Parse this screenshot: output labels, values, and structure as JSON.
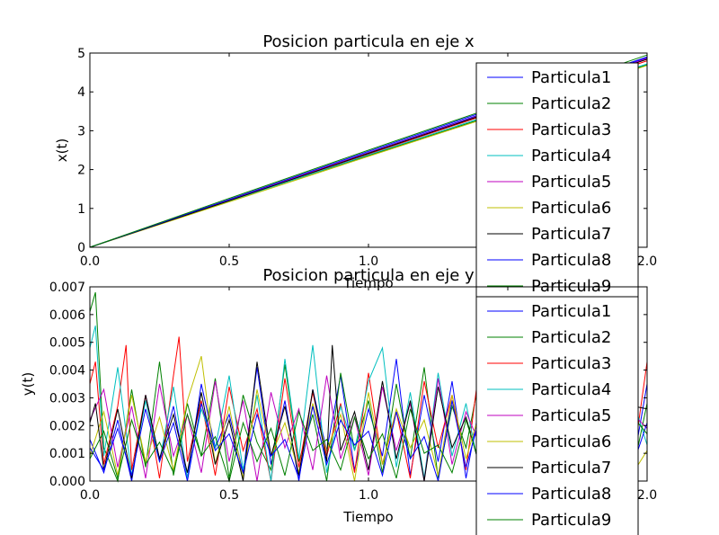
{
  "chart_data": [
    {
      "type": "line",
      "title": "Posicion particula en eje x",
      "xlabel": "Tiempo",
      "ylabel": "x(t)",
      "xlim": [
        0.0,
        2.0
      ],
      "ylim": [
        0,
        5
      ],
      "xticks": [
        "0.0",
        "0.5",
        "1.0",
        "1.5",
        "2.0"
      ],
      "yticks": [
        "0",
        "1",
        "2",
        "3",
        "4",
        "5"
      ],
      "legend_position": "top-right",
      "series": [
        {
          "name": "Particula1",
          "color": "#0000ff",
          "x": [
            0.0,
            0.5,
            1.0,
            1.5,
            2.0
          ],
          "y": [
            0.0,
            1.21,
            2.44,
            3.66,
            4.88
          ]
        },
        {
          "name": "Particula2",
          "color": "#008000",
          "x": [
            0.0,
            0.5,
            1.0,
            1.5,
            2.0
          ],
          "y": [
            0.0,
            1.2,
            2.36,
            3.52,
            4.7
          ]
        },
        {
          "name": "Particula3",
          "color": "#ff0000",
          "x": [
            0.0,
            0.5,
            1.0,
            1.5,
            2.0
          ],
          "y": [
            0.0,
            1.2,
            2.4,
            3.6,
            4.8
          ]
        },
        {
          "name": "Particula4",
          "color": "#00bfbf",
          "x": [
            0.0,
            0.5,
            1.0,
            1.5,
            2.0
          ],
          "y": [
            0.0,
            1.19,
            2.38,
            3.55,
            4.72
          ]
        },
        {
          "name": "Particula5",
          "color": "#bf00bf",
          "x": [
            0.0,
            0.5,
            1.0,
            1.5,
            2.0
          ],
          "y": [
            0.0,
            1.22,
            2.43,
            3.64,
            4.86
          ]
        },
        {
          "name": "Particula6",
          "color": "#bfbf00",
          "x": [
            0.0,
            0.5,
            1.0,
            1.5,
            2.0
          ],
          "y": [
            0.0,
            1.17,
            2.34,
            3.5,
            4.68
          ]
        },
        {
          "name": "Particula7",
          "color": "#000000",
          "x": [
            0.0,
            0.5,
            1.0,
            1.5,
            2.0
          ],
          "y": [
            0.0,
            1.2,
            2.42,
            3.62,
            4.84
          ]
        },
        {
          "name": "Particula8",
          "color": "#0000ff",
          "x": [
            0.0,
            0.5,
            1.0,
            1.5,
            2.0
          ],
          "y": [
            0.0,
            1.23,
            2.47,
            3.7,
            4.9
          ]
        },
        {
          "name": "Particula9",
          "color": "#008000",
          "x": [
            0.0,
            0.5,
            1.0,
            1.5,
            2.0
          ],
          "y": [
            0.0,
            1.26,
            2.5,
            3.73,
            4.95
          ]
        }
      ]
    },
    {
      "type": "line",
      "title": "Posicion particula en eje y",
      "xlabel": "Tiempo",
      "ylabel": "y(t)",
      "xlim": [
        0.0,
        2.0
      ],
      "ylim": [
        0.0,
        0.007
      ],
      "xticks": [
        "0.0",
        "0.5",
        "1.0",
        "1.5",
        "2.0"
      ],
      "yticks": [
        "0.000",
        "0.001",
        "0.002",
        "0.003",
        "0.004",
        "0.005",
        "0.006",
        "0.007"
      ],
      "legend_position": "top-right",
      "series": [
        {
          "name": "Particula1",
          "color": "#0000ff",
          "x": [
            0.0,
            0.05,
            0.1,
            0.15,
            0.2,
            0.25,
            0.3,
            0.35,
            0.4,
            0.45,
            0.5,
            0.55,
            0.6,
            0.65,
            0.7,
            0.75,
            0.8,
            0.85,
            0.9,
            0.95,
            1.0,
            1.05,
            1.1,
            1.15,
            1.2,
            1.25,
            1.3,
            1.35,
            1.4,
            1.45,
            1.5,
            1.55,
            1.6,
            1.65,
            1.7,
            1.75,
            1.8,
            1.85,
            1.9,
            1.95,
            2.0
          ],
          "y": [
            0.0015,
            0.0003,
            0.0022,
            0.0,
            0.0031,
            0.0008,
            0.0027,
            0.0001,
            0.0035,
            0.0012,
            0.0024,
            0.0003,
            0.0041,
            0.0006,
            0.0029,
            0.0,
            0.0033,
            0.0011,
            0.0038,
            0.0004,
            0.0026,
            0.0009,
            0.0044,
            0.0002,
            0.0031,
            0.0007,
            0.0036,
            0.0001,
            0.0028,
            0.0013,
            0.0039,
            0.0005,
            0.0032,
            0.0,
            0.0042,
            0.0008,
            0.0027,
            0.0003,
            0.0037,
            0.0006,
            0.0035
          ]
        },
        {
          "name": "Particula2",
          "color": "#008000",
          "x": [
            0.0,
            0.02,
            0.05,
            0.1,
            0.15,
            0.2,
            0.25,
            0.3,
            0.35,
            0.4,
            0.45,
            0.5,
            0.55,
            0.6,
            0.65,
            0.7,
            0.75,
            0.8,
            0.85,
            0.9,
            0.95,
            1.0,
            1.05,
            1.1,
            1.15,
            1.2,
            1.25,
            1.3,
            1.35,
            1.4,
            1.45,
            1.5,
            1.55,
            1.6,
            1.65,
            1.7,
            1.75,
            1.8,
            1.85,
            1.9,
            1.95,
            2.0
          ],
          "y": [
            0.0061,
            0.0068,
            0.0012,
            0.0,
            0.0033,
            0.0005,
            0.0043,
            0.0002,
            0.0028,
            0.0009,
            0.0037,
            0.0001,
            0.0031,
            0.0014,
            0.0004,
            0.0042,
            0.0007,
            0.0024,
            0.0,
            0.0039,
            0.0011,
            0.0029,
            0.0003,
            0.0035,
            0.0008,
            0.0041,
            0.0001,
            0.0027,
            0.0012,
            0.0038,
            0.0005,
            0.0033,
            0.0,
            0.0043,
            0.0009,
            0.0025,
            0.0002,
            0.0036,
            0.0007,
            0.0031,
            0.0004,
            0.0028
          ]
        },
        {
          "name": "Particula3",
          "color": "#ff0000",
          "x": [
            0.0,
            0.02,
            0.05,
            0.1,
            0.13,
            0.15,
            0.2,
            0.25,
            0.3,
            0.32,
            0.35,
            0.4,
            0.45,
            0.5,
            0.55,
            0.6,
            0.65,
            0.7,
            0.75,
            0.8,
            0.85,
            0.9,
            0.95,
            1.0,
            1.05,
            1.1,
            1.15,
            1.2,
            1.25,
            1.3,
            1.35,
            1.4,
            1.45,
            1.5,
            1.55,
            1.6,
            1.65,
            1.7,
            1.75,
            1.8,
            1.85,
            1.9,
            1.95,
            2.0
          ],
          "y": [
            0.0035,
            0.0043,
            0.0006,
            0.0027,
            0.0049,
            0.0004,
            0.0031,
            0.0001,
            0.0038,
            0.0052,
            0.0007,
            0.0029,
            0.0002,
            0.0034,
            0.0011,
            0.0026,
            0.0,
            0.0037,
            0.0005,
            0.0032,
            0.0009,
            0.0028,
            0.0003,
            0.0039,
            0.0006,
            0.0025,
            0.0001,
            0.0036,
            0.0012,
            0.0031,
            0.0004,
            0.0043,
            0.0008,
            0.0027,
            0.0002,
            0.0038,
            0.0005,
            0.0034,
            0.0011,
            0.0029,
            0.0,
            0.0041,
            0.0007,
            0.0043
          ]
        },
        {
          "name": "Particula4",
          "color": "#00bfbf",
          "x": [
            0.0,
            0.02,
            0.05,
            0.1,
            0.15,
            0.2,
            0.25,
            0.3,
            0.35,
            0.4,
            0.45,
            0.5,
            0.55,
            0.6,
            0.65,
            0.7,
            0.75,
            0.8,
            0.85,
            0.9,
            0.95,
            1.0,
            1.05,
            1.1,
            1.15,
            1.2,
            1.25,
            1.3,
            1.35,
            1.4,
            1.45,
            1.5,
            1.55,
            1.6,
            1.65,
            1.7,
            1.75,
            1.8,
            1.85,
            1.9,
            1.95,
            2.0
          ],
          "y": [
            0.0048,
            0.0056,
            0.0009,
            0.0041,
            0.0002,
            0.0029,
            0.0007,
            0.0034,
            0.0001,
            0.0026,
            0.0012,
            0.0038,
            0.0004,
            0.0031,
            0.0,
            0.0044,
            0.0008,
            0.0049,
            0.0003,
            0.0027,
            0.0011,
            0.0036,
            0.0048,
            0.0005,
            0.0032,
            0.0001,
            0.0039,
            0.0009,
            0.0028,
            0.0003,
            0.0042,
            0.0006,
            0.0033,
            0.0,
            0.0037,
            0.0012,
            0.0025,
            0.0004,
            0.0041,
            0.0008,
            0.0029,
            0.0013
          ]
        },
        {
          "name": "Particula5",
          "color": "#bf00bf",
          "x": [
            0.0,
            0.05,
            0.1,
            0.15,
            0.2,
            0.25,
            0.3,
            0.35,
            0.4,
            0.45,
            0.5,
            0.55,
            0.6,
            0.65,
            0.7,
            0.75,
            0.8,
            0.85,
            0.9,
            0.95,
            1.0,
            1.05,
            1.1,
            1.15,
            1.2,
            1.25,
            1.3,
            1.35,
            1.4,
            1.45,
            1.5,
            1.55,
            1.6,
            1.65,
            1.7,
            1.75,
            1.8,
            1.85,
            1.9,
            1.95,
            2.0
          ],
          "y": [
            0.0022,
            0.0033,
            0.0005,
            0.0027,
            0.0001,
            0.0035,
            0.0009,
            0.0024,
            0.0003,
            0.0036,
            0.0007,
            0.0029,
            0.0,
            0.0032,
            0.0012,
            0.0026,
            0.0004,
            0.0038,
            0.0008,
            0.0023,
            0.0002,
            0.0034,
            0.0011,
            0.0028,
            0.0,
            0.0037,
            0.0006,
            0.0025,
            0.0013,
            0.0033,
            0.0004,
            0.0029,
            0.0009,
            0.0036,
            0.0001,
            0.0027,
            0.0012,
            0.0031,
            0.0005,
            0.0024,
            0.0019
          ]
        },
        {
          "name": "Particula6",
          "color": "#bfbf00",
          "x": [
            0.0,
            0.05,
            0.1,
            0.15,
            0.2,
            0.25,
            0.3,
            0.35,
            0.4,
            0.45,
            0.5,
            0.55,
            0.6,
            0.65,
            0.7,
            0.75,
            0.8,
            0.85,
            0.9,
            0.95,
            1.0,
            1.05,
            1.1,
            1.15,
            1.2,
            1.25,
            1.3,
            1.35,
            1.4,
            1.45,
            1.5,
            1.55,
            1.6,
            1.65,
            1.7,
            1.75,
            1.8,
            1.85,
            1.9,
            1.95,
            2.0
          ],
          "y": [
            0.0009,
            0.0025,
            0.0002,
            0.0031,
            0.0007,
            0.0023,
            0.0004,
            0.0029,
            0.0045,
            0.0006,
            0.0027,
            0.0001,
            0.0033,
            0.0009,
            0.0021,
            0.0003,
            0.0028,
            0.0011,
            0.0024,
            0.0,
            0.0032,
            0.0006,
            0.0026,
            0.0012,
            0.0022,
            0.0002,
            0.0031,
            0.0008,
            0.0025,
            0.0004,
            0.0034,
            0.0001,
            0.0027,
            0.001,
            0.0023,
            0.0005,
            0.0029,
            0.0007,
            0.0026,
            0.0003,
            0.0011
          ]
        },
        {
          "name": "Particula7",
          "color": "#000000",
          "x": [
            0.0,
            0.02,
            0.05,
            0.1,
            0.15,
            0.2,
            0.25,
            0.3,
            0.35,
            0.4,
            0.45,
            0.5,
            0.55,
            0.6,
            0.65,
            0.7,
            0.75,
            0.8,
            0.85,
            0.87,
            0.9,
            0.95,
            1.0,
            1.05,
            1.1,
            1.15,
            1.2,
            1.25,
            1.3,
            1.35,
            1.4,
            1.45,
            1.5,
            1.55,
            1.6,
            1.65,
            1.7,
            1.75,
            1.8,
            1.85,
            1.9,
            1.95,
            2.0
          ],
          "y": [
            0.0021,
            0.0028,
            0.0004,
            0.0026,
            0.0001,
            0.0031,
            0.0008,
            0.0024,
            0.0003,
            0.0032,
            0.0006,
            0.0022,
            0.0,
            0.0043,
            0.0009,
            0.0027,
            0.0002,
            0.0033,
            0.0007,
            0.0049,
            0.0011,
            0.0025,
            0.0004,
            0.0036,
            0.0008,
            0.0029,
            0.0,
            0.0034,
            0.0012,
            0.0023,
            0.0005,
            0.0031,
            0.0009,
            0.0028,
            0.0002,
            0.0037,
            0.0006,
            0.0024,
            0.0011,
            0.0032,
            0.0003,
            0.0027,
            0.0026
          ]
        },
        {
          "name": "Particula8",
          "color": "#0000ff",
          "x": [
            0.0,
            0.05,
            0.1,
            0.15,
            0.2,
            0.25,
            0.3,
            0.35,
            0.4,
            0.45,
            0.5,
            0.55,
            0.6,
            0.65,
            0.7,
            0.75,
            0.8,
            0.85,
            0.9,
            0.95,
            1.0,
            1.05,
            1.1,
            1.15,
            1.2,
            1.25,
            1.3,
            1.35,
            1.4,
            1.45,
            1.5,
            1.55,
            1.6,
            1.65,
            1.7,
            1.75,
            1.8,
            1.85,
            1.9,
            1.95,
            2.0
          ],
          "y": [
            0.0012,
            0.0004,
            0.0019,
            0.0002,
            0.0026,
            0.0007,
            0.0021,
            0.0,
            0.0028,
            0.0011,
            0.0017,
            0.0003,
            0.0024,
            0.0009,
            0.0015,
            0.0001,
            0.0027,
            0.0006,
            0.0022,
            0.0013,
            0.0018,
            0.0002,
            0.0025,
            0.0008,
            0.0016,
            0.0,
            0.0029,
            0.0005,
            0.0023,
            0.0012,
            0.0019,
            0.0003,
            0.0026,
            0.0007,
            0.0021,
            0.001,
            0.0017,
            0.0001,
            0.0024,
            0.0006,
            0.0021
          ]
        },
        {
          "name": "Particula9",
          "color": "#008000",
          "x": [
            0.0,
            0.05,
            0.1,
            0.15,
            0.2,
            0.25,
            0.3,
            0.35,
            0.4,
            0.45,
            0.5,
            0.55,
            0.6,
            0.65,
            0.7,
            0.75,
            0.8,
            0.85,
            0.9,
            0.95,
            1.0,
            1.05,
            1.1,
            1.15,
            1.2,
            1.25,
            1.3,
            1.35,
            1.4,
            1.45,
            1.5,
            1.55,
            1.6,
            1.65,
            1.7,
            1.75,
            1.8,
            1.85,
            1.9,
            1.95,
            2.0
          ],
          "y": [
            0.0008,
            0.0018,
            0.0001,
            0.0022,
            0.0006,
            0.0014,
            0.0003,
            0.0024,
            0.0009,
            0.0016,
            0.0,
            0.0021,
            0.0007,
            0.0019,
            0.0002,
            0.0025,
            0.0011,
            0.0015,
            0.0004,
            0.0023,
            0.0008,
            0.0017,
            0.0001,
            0.0026,
            0.001,
            0.0013,
            0.0003,
            0.0022,
            0.0006,
            0.0018,
            0.0,
            0.0024,
            0.0009,
            0.0016,
            0.0002,
            0.0027,
            0.0011,
            0.0014,
            0.0005,
            0.0023,
            0.0017
          ]
        }
      ]
    }
  ]
}
